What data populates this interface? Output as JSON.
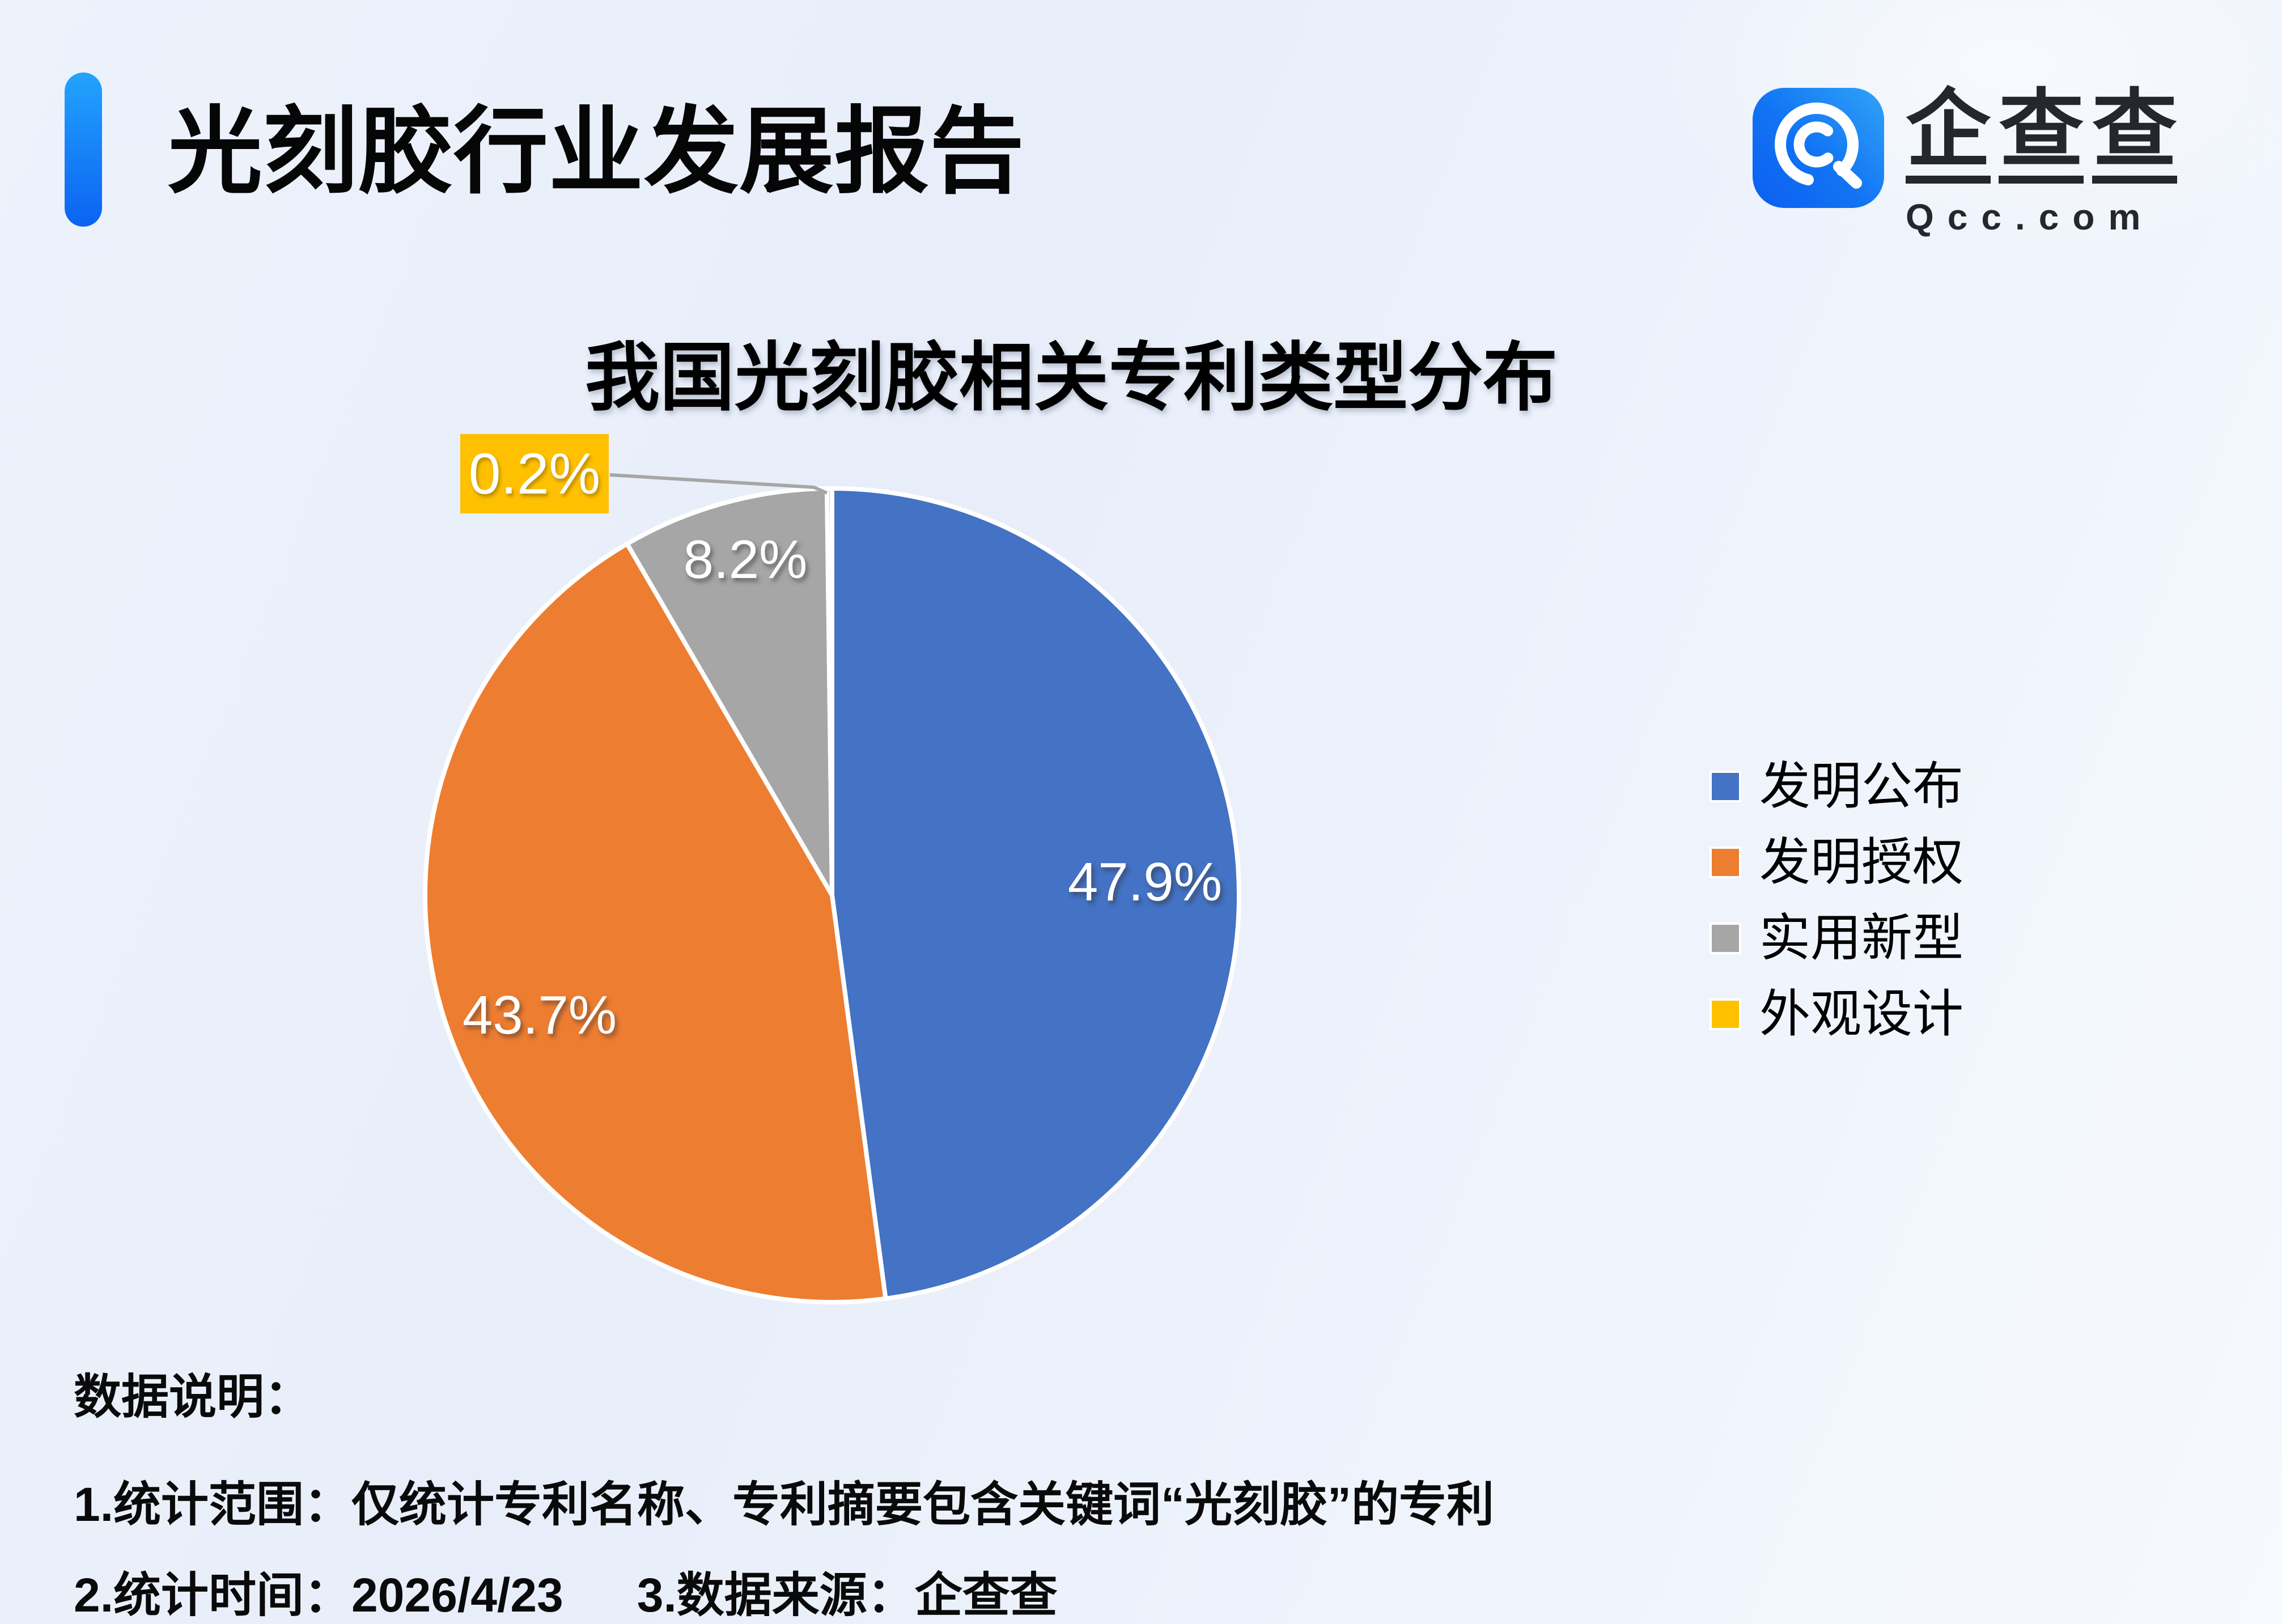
{
  "header": {
    "title": "光刻胶行业发展报告",
    "logo": {
      "brand_chars": [
        "企",
        "查",
        "查"
      ],
      "domain": "Qcc.com"
    }
  },
  "chart_data": {
    "type": "pie",
    "title": "我国光刻胶相关专利类型分布",
    "categories": [
      "发明公布",
      "发明授权",
      "实用新型",
      "外观设计"
    ],
    "values": [
      47.9,
      43.7,
      8.2,
      0.2
    ],
    "labels": [
      "47.9%",
      "43.7%",
      "8.2%",
      "0.2%"
    ],
    "colors": [
      "#4472C4",
      "#ED7D31",
      "#A6A6A6",
      "#FFC000"
    ],
    "unit": "percent",
    "start_angle": "top",
    "direction": "clockwise",
    "legend_position": "right",
    "label_style": "inside white labels; smallest slice uses yellow callout box with leader line"
  },
  "legend": {
    "items": [
      {
        "label": "发明公布",
        "color": "#4472C4"
      },
      {
        "label": "发明授权",
        "color": "#ED7D31"
      },
      {
        "label": "实用新型",
        "color": "#A6A6A6"
      },
      {
        "label": "外观设计",
        "color": "#FFC000"
      }
    ]
  },
  "notes": {
    "heading": "数据说明：",
    "line1": "1.统计范围：仅统计专利名称、专利摘要包含关键词“光刻胶”的专利",
    "line2a": "2.统计时间：2026/4/23",
    "line2b": "3.数据来源：企查查"
  },
  "accent": {
    "bar_gradient_top": "#23A3FE",
    "bar_gradient_bottom": "#0B63F1",
    "leader_line_color": "#A6A6A6",
    "slice_border_color": "#FFFFFF"
  }
}
